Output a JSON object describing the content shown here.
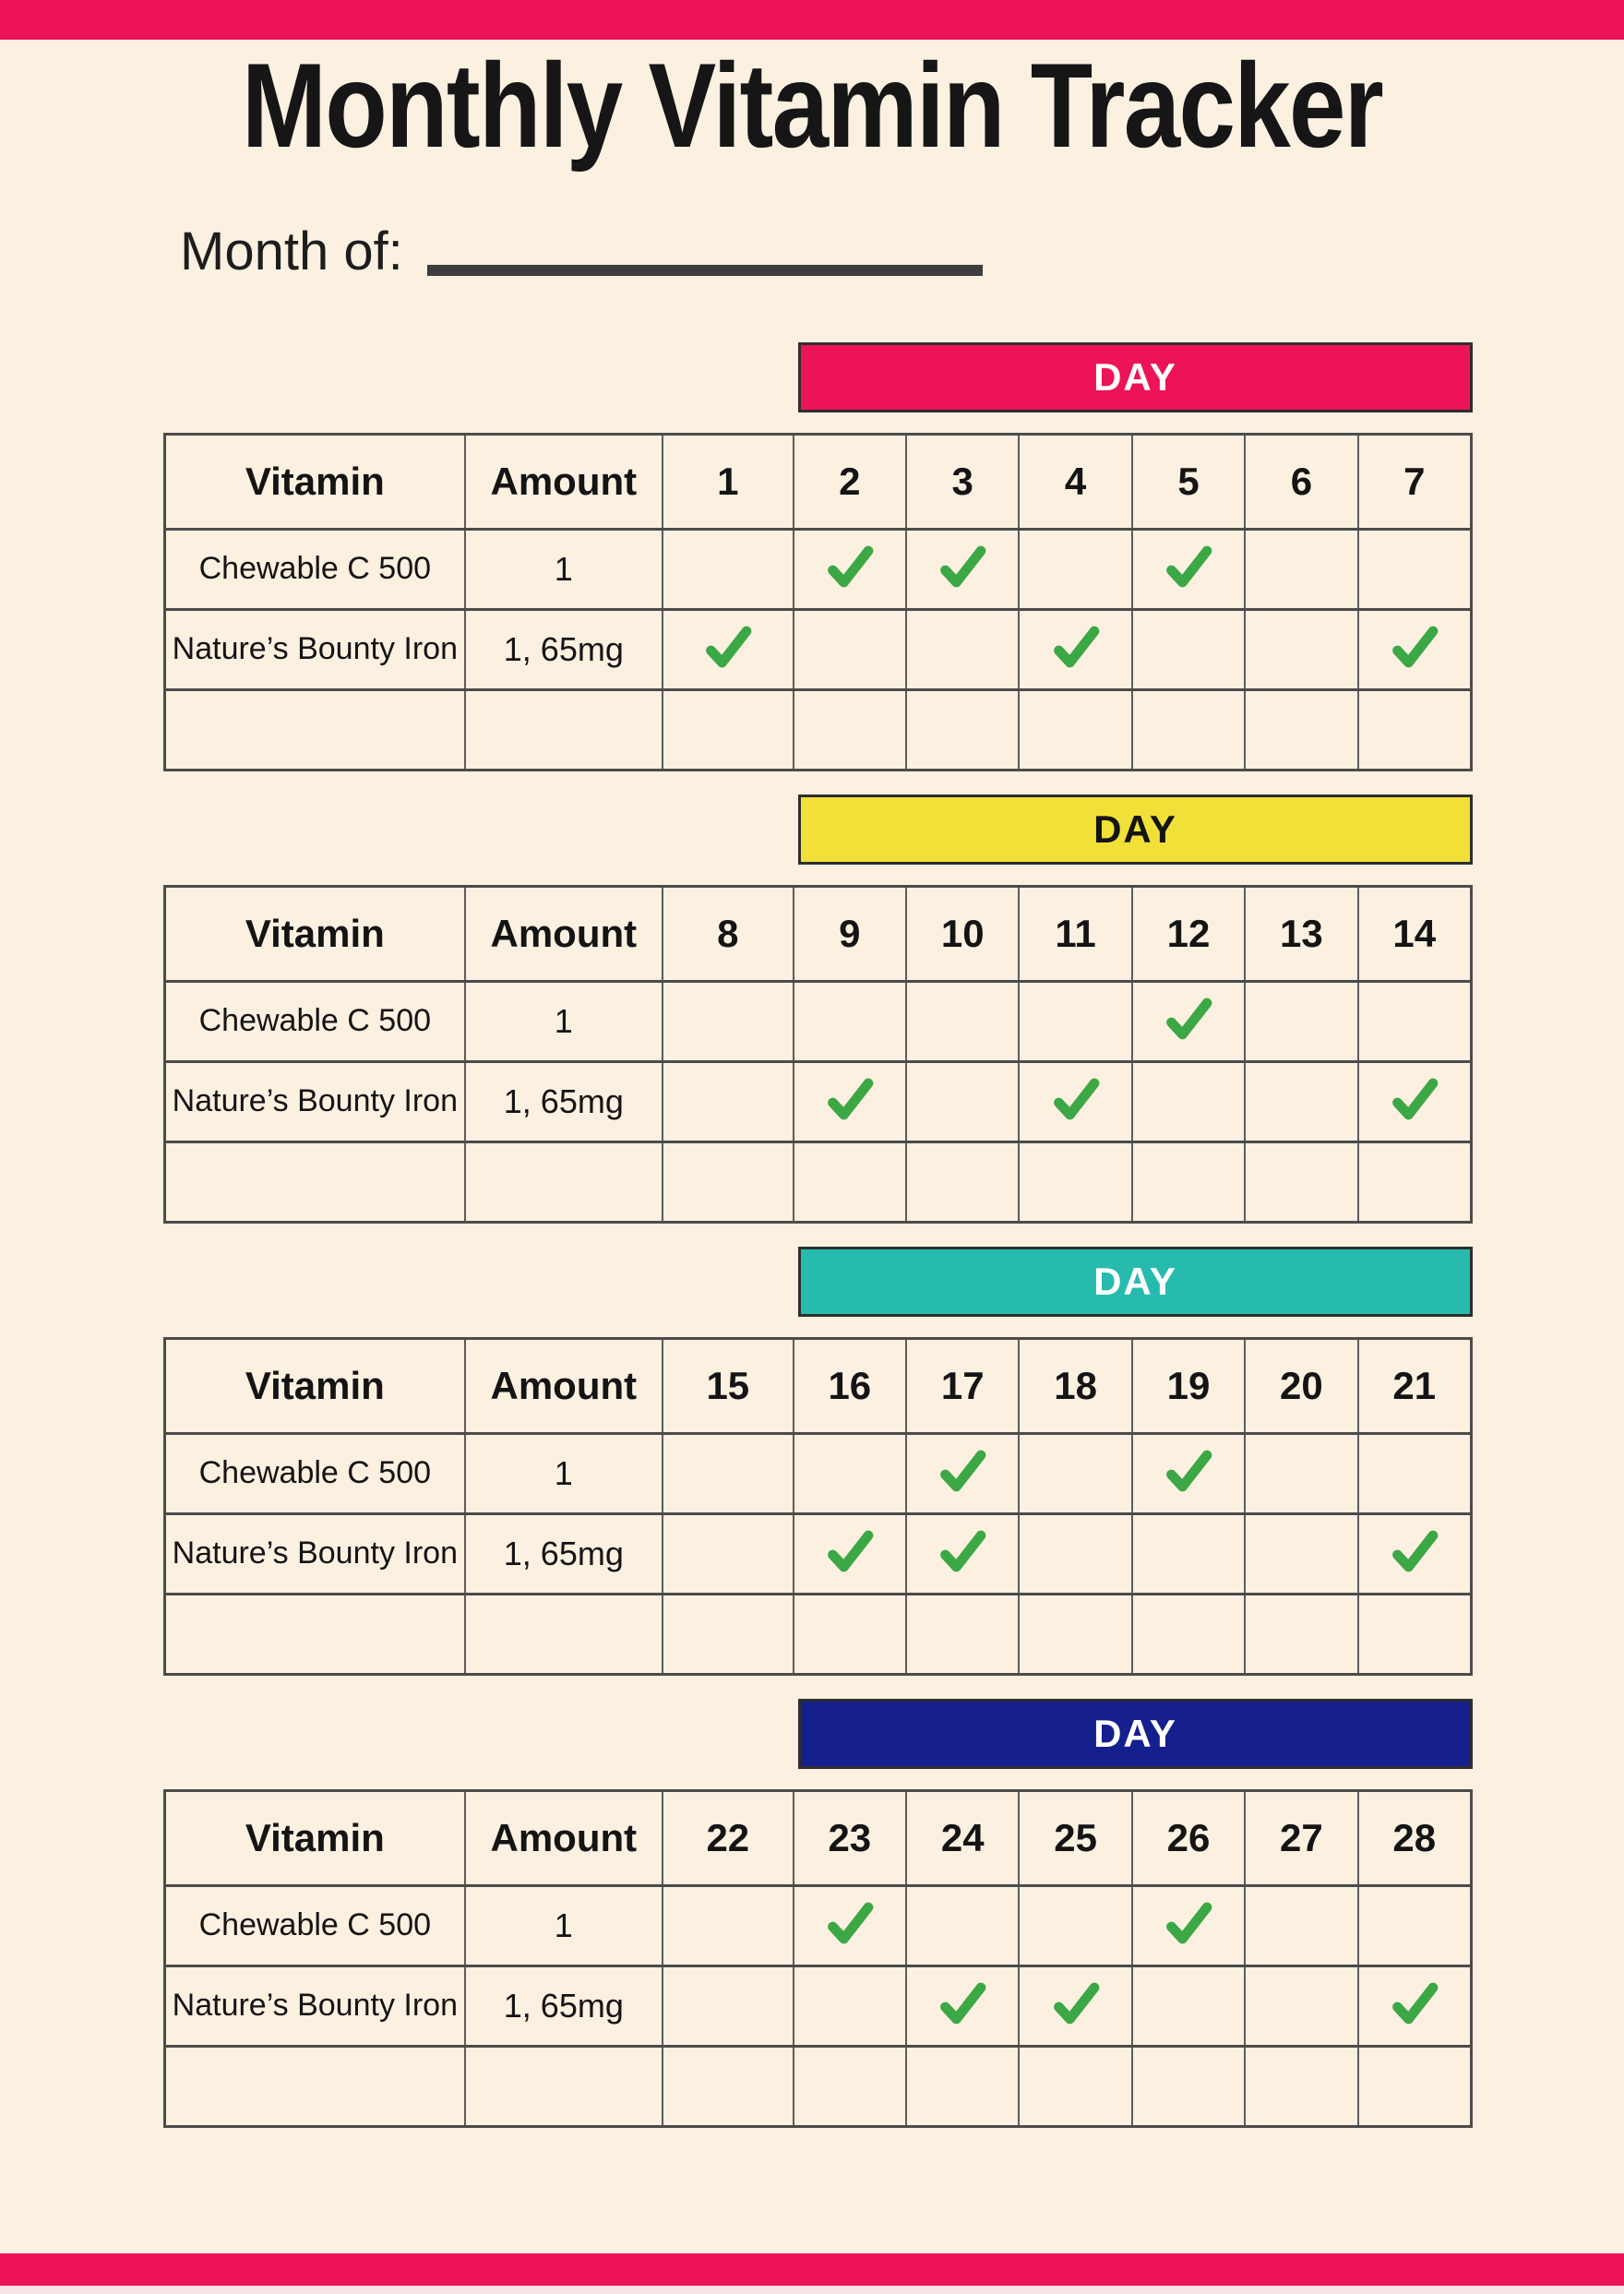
{
  "header": {
    "title": "Monthly Vitamin Tracker",
    "month_label": "Month of:"
  },
  "colors": {
    "accent_pink": "#EC1456",
    "banner_yellow": "#F0E038",
    "banner_teal": "#27BBAE",
    "banner_navy": "#15208E",
    "check_green": "#3BA845",
    "background_cream": "#FCF0E1",
    "grid_dark": "#4b4b4b"
  },
  "sections": [
    {
      "banner": {
        "label": "DAY",
        "color": "#EC1456",
        "text_color": "#FFFFFF"
      },
      "columns": [
        "Vitamin",
        "Amount",
        "1",
        "2",
        "3",
        "4",
        "5",
        "6",
        "7"
      ],
      "rows": [
        {
          "vitamin": "Chewable C 500",
          "amount": "1",
          "checked_days": [
            "2",
            "3",
            "5"
          ]
        },
        {
          "vitamin": "Nature’s Bounty Iron",
          "amount": "1, 65mg",
          "checked_days": [
            "1",
            "4",
            "7"
          ]
        },
        {
          "vitamin": "",
          "amount": "",
          "checked_days": []
        }
      ]
    },
    {
      "banner": {
        "label": "DAY",
        "color": "#F0E038",
        "text_color": "#141414"
      },
      "columns": [
        "Vitamin",
        "Amount",
        "8",
        "9",
        "10",
        "11",
        "12",
        "13",
        "14"
      ],
      "rows": [
        {
          "vitamin": "Chewable C 500",
          "amount": "1",
          "checked_days": [
            "12"
          ]
        },
        {
          "vitamin": "Nature’s Bounty Iron",
          "amount": "1, 65mg",
          "checked_days": [
            "9",
            "11",
            "14"
          ]
        },
        {
          "vitamin": "",
          "amount": "",
          "checked_days": []
        }
      ]
    },
    {
      "banner": {
        "label": "DAY",
        "color": "#27BBAE",
        "text_color": "#FFFFFF"
      },
      "columns": [
        "Vitamin",
        "Amount",
        "15",
        "16",
        "17",
        "18",
        "19",
        "20",
        "21"
      ],
      "rows": [
        {
          "vitamin": "Chewable C 500",
          "amount": "1",
          "checked_days": [
            "17",
            "19"
          ]
        },
        {
          "vitamin": "Nature’s Bounty Iron",
          "amount": "1, 65mg",
          "checked_days": [
            "16",
            "17",
            "21"
          ]
        },
        {
          "vitamin": "",
          "amount": "",
          "checked_days": []
        }
      ]
    },
    {
      "banner": {
        "label": "DAY",
        "color": "#15208E",
        "text_color": "#FFFFFF"
      },
      "columns": [
        "Vitamin",
        "Amount",
        "22",
        "23",
        "24",
        "25",
        "26",
        "27",
        "28"
      ],
      "rows": [
        {
          "vitamin": "Chewable C 500",
          "amount": "1",
          "checked_days": [
            "23",
            "26"
          ]
        },
        {
          "vitamin": "Nature’s Bounty Iron",
          "amount": "1, 65mg",
          "checked_days": [
            "24",
            "25",
            "28"
          ]
        },
        {
          "vitamin": "",
          "amount": "",
          "checked_days": []
        }
      ]
    }
  ]
}
